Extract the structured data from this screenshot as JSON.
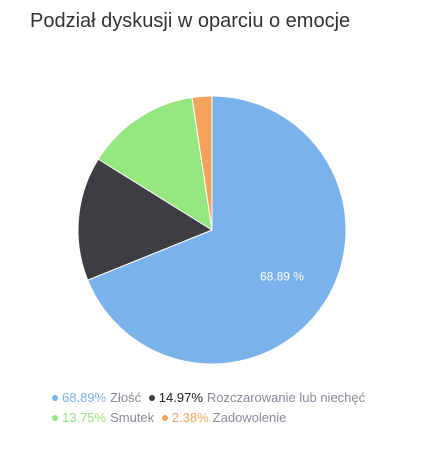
{
  "chart_data": {
    "type": "pie",
    "title": "Podział dyskusji w oparciu o emocje",
    "slices": [
      {
        "label": "Złość",
        "value": 68.89,
        "percent_label": "68.89%",
        "data_label": "68.89 %",
        "color": "#7ab2ec"
      },
      {
        "label": "Rozczarowanie lub niechęć",
        "value": 14.97,
        "percent_label": "14.97%",
        "data_label": "",
        "color": "#3d3d42"
      },
      {
        "label": "Smutek",
        "value": 13.75,
        "percent_label": "13.75%",
        "data_label": "",
        "color": "#94e77e"
      },
      {
        "label": "Zadowolenie",
        "value": 2.38,
        "percent_label": "2.38%",
        "data_label": "",
        "color": "#f5a35c"
      }
    ],
    "legend_position": "bottom"
  }
}
